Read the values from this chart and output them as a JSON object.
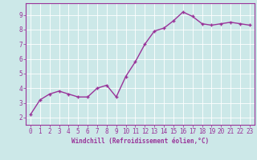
{
  "x": [
    0,
    1,
    2,
    3,
    4,
    5,
    6,
    7,
    8,
    9,
    10,
    11,
    12,
    13,
    14,
    15,
    16,
    17,
    18,
    19,
    20,
    21,
    22,
    23
  ],
  "y": [
    2.2,
    3.2,
    3.6,
    3.8,
    3.6,
    3.4,
    3.4,
    4.0,
    4.2,
    3.4,
    4.8,
    5.8,
    7.0,
    7.9,
    8.1,
    8.6,
    9.2,
    8.9,
    8.4,
    8.3,
    8.4,
    8.5,
    8.4,
    8.3
  ],
  "line_color": "#993399",
  "marker": "+",
  "marker_size": 3,
  "xlabel": "Windchill (Refroidissement éolien,°C)",
  "ylim": [
    1.5,
    9.8
  ],
  "xlim": [
    -0.5,
    23.5
  ],
  "yticks": [
    2,
    3,
    4,
    5,
    6,
    7,
    8,
    9
  ],
  "xtick_labels": [
    "0",
    "1",
    "2",
    "3",
    "4",
    "5",
    "6",
    "7",
    "8",
    "9",
    "10",
    "11",
    "12",
    "13",
    "14",
    "15",
    "16",
    "17",
    "18",
    "19",
    "20",
    "21",
    "22",
    "23"
  ],
  "background_color": "#cce8e8",
  "grid_color": "#ffffff",
  "tick_color": "#993399",
  "label_color": "#993399",
  "linewidth": 1.0,
  "xlabel_fontsize": 5.5,
  "tick_fontsize": 5.5
}
